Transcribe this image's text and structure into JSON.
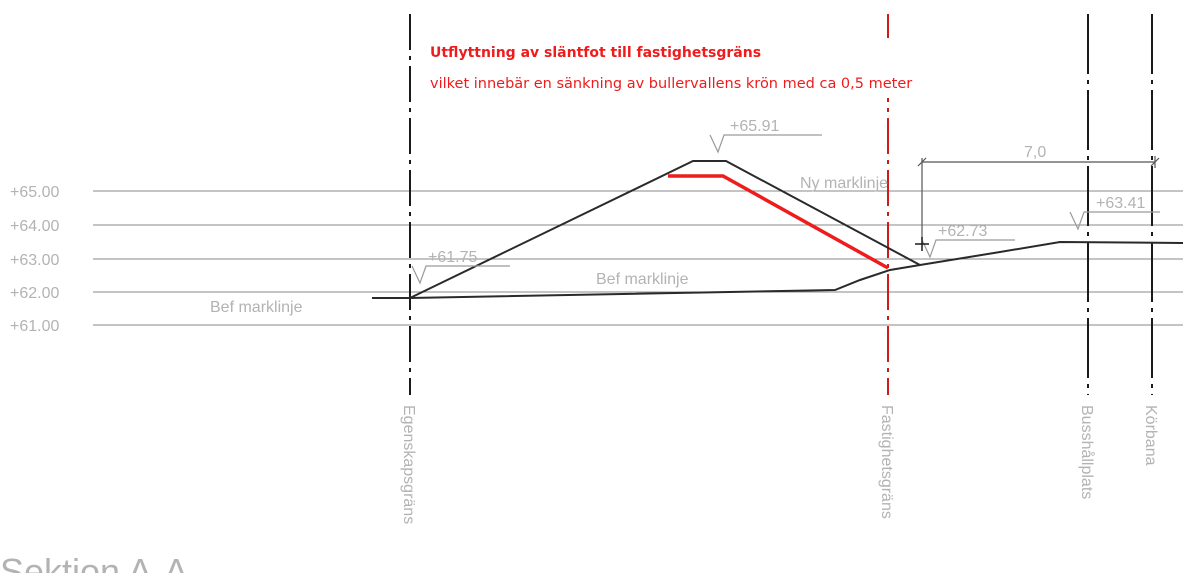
{
  "annotation": {
    "title": "Utflyttning av släntfot till fastighetsgräns",
    "description": "vilket innebär en sänkning av bullervallens krön med ca 0,5 meter"
  },
  "levels": [
    "+65.00",
    "+64.00",
    "+63.00",
    "+62.00",
    "+61.00"
  ],
  "elevations": {
    "crest": "+65.91",
    "toe_left": "+61.75",
    "toe_right": "+62.73",
    "right": "+63.41"
  },
  "dimension": "7,0",
  "ground_labels": {
    "new_ground": "Ny marklinje",
    "existing_left": "Bef marklinje",
    "existing_mid": "Bef marklinje"
  },
  "vertical_labels": {
    "property_boundary_zoning": "Egenskapsgräns",
    "property_boundary": "Fastighetsgräns",
    "bus_stop": "Busshållplats",
    "roadway": "Körbana"
  },
  "section_title": "Sektion A-A",
  "colors": {
    "annotation": "#ee1c1c",
    "lines": "#2a2a2a",
    "labels": "#b3b3b3"
  }
}
